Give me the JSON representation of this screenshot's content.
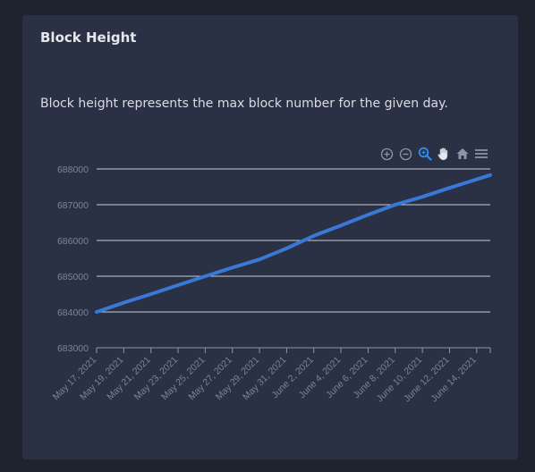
{
  "card": {
    "title": "Block Height",
    "description": "Block height represents the max block number for the given day."
  },
  "toolbar": {
    "tools": [
      "zoom-in-icon",
      "zoom-out-icon",
      "selection-zoom-icon",
      "pan-icon",
      "reset-home-icon",
      "menu-icon"
    ],
    "active": "selection-zoom-icon"
  },
  "colors": {
    "background": "#1f2330",
    "card": "#2b3144",
    "line": "#3a78d8",
    "grid": "#c8ccd6",
    "axis_text": "#7c8396",
    "active_tool": "#2f8ef0",
    "tool": "#8e95a8"
  },
  "chart_data": {
    "type": "line",
    "title": "",
    "xlabel": "",
    "ylabel": "",
    "ylim": [
      683000,
      688000
    ],
    "yticks": [
      "688000",
      "687000",
      "686000",
      "685000",
      "684000",
      "683000"
    ],
    "xticks": [
      "May 17, 2021",
      "May 19, 2021",
      "May 21, 2021",
      "May 23, 2021",
      "May 25, 2021",
      "May 27, 2021",
      "May 29, 2021",
      "May 31, 2021",
      "June 2, 2021",
      "June 4, 2021",
      "June 6, 2021",
      "June 8, 2021",
      "June 10, 2021",
      "June 12, 2021",
      "June 14, 2021"
    ],
    "grid": true,
    "series": [
      {
        "x": [
          "May 17, 2021",
          "May 19, 2021",
          "May 21, 2021",
          "May 23, 2021",
          "May 25, 2021",
          "May 27, 2021",
          "May 29, 2021",
          "May 31, 2021",
          "June 2, 2021",
          "June 4, 2021",
          "June 6, 2021",
          "June 8, 2021",
          "June 10, 2021",
          "June 12, 2021",
          "June 14, 2021",
          "June 15, 2021"
        ],
        "values": [
          684000,
          684260,
          684500,
          684750,
          685000,
          685240,
          685470,
          685780,
          686130,
          686420,
          686720,
          687000,
          687220,
          687470,
          687710,
          687830
        ]
      }
    ]
  }
}
